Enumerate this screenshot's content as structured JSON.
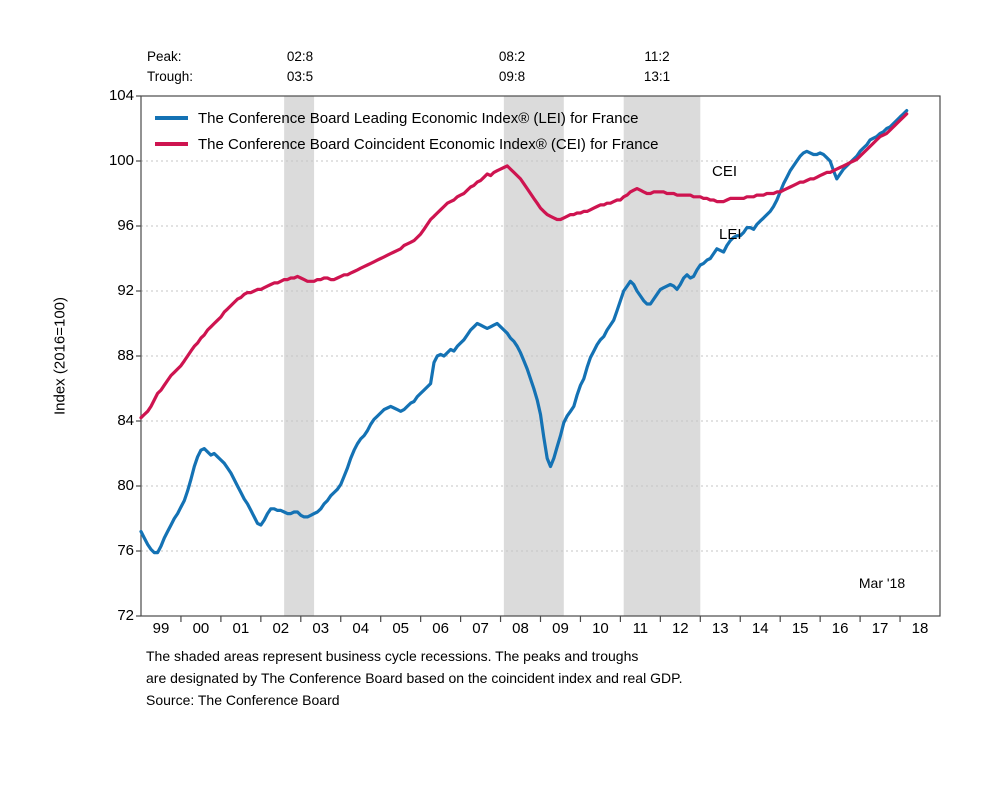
{
  "annotations": {
    "peak_label": "Peak:",
    "trough_label": "Trough:",
    "columns": [
      {
        "peak": "02:8",
        "trough": "03:5"
      },
      {
        "peak": "08:2",
        "trough": "09:8"
      },
      {
        "peak": "11:2",
        "trough": "13:1"
      }
    ],
    "cei_label": "CEI",
    "lei_label": "LEI",
    "last_point_label": "Mar '18"
  },
  "legend": [
    {
      "label": "The Conference Board Leading Economic Index® (LEI) for France",
      "color": "#1472B4"
    },
    {
      "label": "The Conference Board Coincident Economic Index® (CEI) for France",
      "color": "#CE1450"
    }
  ],
  "y_axis": {
    "title": "Index (2016=100)",
    "min": 72,
    "max": 104,
    "ticks": [
      104,
      100,
      96,
      92,
      88,
      84,
      80,
      76,
      72
    ]
  },
  "x_axis": {
    "tick_labels": [
      "99",
      "00",
      "01",
      "02",
      "03",
      "04",
      "05",
      "06",
      "07",
      "08",
      "09",
      "10",
      "11",
      "12",
      "13",
      "14",
      "15",
      "16",
      "17",
      "18"
    ]
  },
  "footnotes": [
    "The shaded areas represent business cycle recessions. The peaks and troughs",
    "are designated by The Conference Board based on the coincident index and real GDP.",
    "Source: The Conference Board"
  ],
  "colors": {
    "lei": "#1472B4",
    "cei": "#CE1450",
    "recession_band": "#DBDBDB",
    "gridline": "#C6C6C6",
    "axis": "#4A4A4A"
  },
  "chart_data": {
    "type": "line",
    "title": "",
    "xlabel": "",
    "ylabel": "Index (2016=100)",
    "x_range": [
      1999,
      2019
    ],
    "ylim": [
      72,
      104
    ],
    "x_start": 1999.0,
    "x_step": 0.0833333,
    "last_point": "2018-03",
    "grid": "dashed-horizontal",
    "legend_position": "top-left-inside",
    "recessions": [
      {
        "peak": "2002-08",
        "trough": "2003-05",
        "start": 2002.583,
        "end": 2003.333
      },
      {
        "peak": "2008-02",
        "trough": "2009-08",
        "start": 2008.083,
        "end": 2009.583
      },
      {
        "peak": "2011-02",
        "trough": "2013-01",
        "start": 2011.083,
        "end": 2013.0
      }
    ],
    "series": [
      {
        "name": "LEI",
        "label": "The Conference Board Leading Economic Index® (LEI) for France",
        "color": "#1472B4",
        "values": [
          77.2,
          76.8,
          76.4,
          76.1,
          75.9,
          75.9,
          76.3,
          76.8,
          77.2,
          77.6,
          78.0,
          78.3,
          78.7,
          79.1,
          79.7,
          80.4,
          81.2,
          81.8,
          82.2,
          82.3,
          82.1,
          81.9,
          82.0,
          81.8,
          81.6,
          81.4,
          81.1,
          80.8,
          80.4,
          80.0,
          79.6,
          79.2,
          78.9,
          78.5,
          78.1,
          77.7,
          77.6,
          77.9,
          78.3,
          78.6,
          78.6,
          78.5,
          78.5,
          78.4,
          78.3,
          78.3,
          78.4,
          78.4,
          78.2,
          78.1,
          78.1,
          78.2,
          78.3,
          78.4,
          78.6,
          78.9,
          79.1,
          79.4,
          79.6,
          79.8,
          80.1,
          80.6,
          81.1,
          81.7,
          82.2,
          82.6,
          82.9,
          83.1,
          83.4,
          83.8,
          84.1,
          84.3,
          84.5,
          84.7,
          84.8,
          84.9,
          84.8,
          84.7,
          84.6,
          84.7,
          84.9,
          85.1,
          85.2,
          85.5,
          85.7,
          85.9,
          86.1,
          86.3,
          87.6,
          88.0,
          88.1,
          88.0,
          88.2,
          88.4,
          88.3,
          88.6,
          88.8,
          89.0,
          89.3,
          89.6,
          89.8,
          90.0,
          89.9,
          89.8,
          89.7,
          89.8,
          89.9,
          90.0,
          89.8,
          89.6,
          89.4,
          89.1,
          88.9,
          88.6,
          88.2,
          87.7,
          87.2,
          86.6,
          86.0,
          85.3,
          84.4,
          83.0,
          81.7,
          81.2,
          81.7,
          82.4,
          83.1,
          83.9,
          84.3,
          84.6,
          84.9,
          85.6,
          86.2,
          86.6,
          87.3,
          87.9,
          88.3,
          88.7,
          89.0,
          89.2,
          89.6,
          89.9,
          90.2,
          90.8,
          91.4,
          92.0,
          92.3,
          92.6,
          92.4,
          92.0,
          91.7,
          91.4,
          91.2,
          91.2,
          91.5,
          91.8,
          92.1,
          92.2,
          92.3,
          92.4,
          92.3,
          92.1,
          92.4,
          92.8,
          93.0,
          92.8,
          92.9,
          93.3,
          93.6,
          93.7,
          93.9,
          94.0,
          94.3,
          94.6,
          94.5,
          94.4,
          94.8,
          95.1,
          95.3,
          95.4,
          95.4,
          95.6,
          95.9,
          95.9,
          95.8,
          96.1,
          96.3,
          96.5,
          96.7,
          96.9,
          97.2,
          97.6,
          98.1,
          98.6,
          99.0,
          99.4,
          99.7,
          100.0,
          100.3,
          100.5,
          100.6,
          100.5,
          100.4,
          100.4,
          100.5,
          100.4,
          100.2,
          100.0,
          99.4,
          98.9,
          99.2,
          99.5,
          99.7,
          99.9,
          100.1,
          100.3,
          100.6,
          100.8,
          101.0,
          101.3,
          101.4,
          101.5,
          101.7,
          101.8,
          102.0,
          102.1,
          102.3,
          102.5,
          102.7,
          102.9,
          103.1
        ]
      },
      {
        "name": "CEI",
        "label": "The Conference Board Coincident Economic Index® (CEI) for France",
        "color": "#CE1450",
        "values": [
          84.2,
          84.4,
          84.6,
          84.9,
          85.3,
          85.7,
          85.9,
          86.2,
          86.5,
          86.8,
          87.0,
          87.2,
          87.4,
          87.7,
          88.0,
          88.3,
          88.6,
          88.8,
          89.1,
          89.3,
          89.6,
          89.8,
          90.0,
          90.2,
          90.4,
          90.7,
          90.9,
          91.1,
          91.3,
          91.5,
          91.6,
          91.8,
          91.9,
          91.9,
          92.0,
          92.1,
          92.1,
          92.2,
          92.3,
          92.4,
          92.5,
          92.5,
          92.6,
          92.7,
          92.7,
          92.8,
          92.8,
          92.9,
          92.8,
          92.7,
          92.6,
          92.6,
          92.6,
          92.7,
          92.7,
          92.8,
          92.8,
          92.7,
          92.7,
          92.8,
          92.9,
          93.0,
          93.0,
          93.1,
          93.2,
          93.3,
          93.4,
          93.5,
          93.6,
          93.7,
          93.8,
          93.9,
          94.0,
          94.1,
          94.2,
          94.3,
          94.4,
          94.5,
          94.6,
          94.8,
          94.9,
          95.0,
          95.1,
          95.3,
          95.5,
          95.8,
          96.1,
          96.4,
          96.6,
          96.8,
          97.0,
          97.2,
          97.4,
          97.5,
          97.6,
          97.8,
          97.9,
          98.0,
          98.2,
          98.4,
          98.5,
          98.7,
          98.8,
          99.0,
          99.2,
          99.1,
          99.3,
          99.4,
          99.5,
          99.6,
          99.7,
          99.5,
          99.3,
          99.1,
          98.9,
          98.6,
          98.3,
          98.0,
          97.7,
          97.4,
          97.1,
          96.9,
          96.7,
          96.6,
          96.5,
          96.4,
          96.4,
          96.5,
          96.6,
          96.7,
          96.7,
          96.8,
          96.8,
          96.9,
          96.9,
          97.0,
          97.1,
          97.2,
          97.3,
          97.3,
          97.4,
          97.4,
          97.5,
          97.6,
          97.6,
          97.8,
          97.9,
          98.1,
          98.2,
          98.3,
          98.2,
          98.1,
          98.0,
          98.0,
          98.1,
          98.1,
          98.1,
          98.1,
          98.0,
          98.0,
          98.0,
          97.9,
          97.9,
          97.9,
          97.9,
          97.9,
          97.8,
          97.8,
          97.8,
          97.7,
          97.7,
          97.6,
          97.6,
          97.5,
          97.5,
          97.5,
          97.6,
          97.7,
          97.7,
          97.7,
          97.7,
          97.7,
          97.8,
          97.8,
          97.8,
          97.9,
          97.9,
          97.9,
          98.0,
          98.0,
          98.0,
          98.1,
          98.1,
          98.2,
          98.3,
          98.4,
          98.5,
          98.6,
          98.7,
          98.7,
          98.8,
          98.9,
          98.9,
          99.0,
          99.1,
          99.2,
          99.3,
          99.3,
          99.4,
          99.5,
          99.6,
          99.7,
          99.8,
          99.9,
          100.0,
          100.1,
          100.3,
          100.5,
          100.7,
          100.9,
          101.1,
          101.3,
          101.5,
          101.6,
          101.7,
          101.9,
          102.1,
          102.3,
          102.5,
          102.7,
          102.9
        ]
      }
    ]
  }
}
